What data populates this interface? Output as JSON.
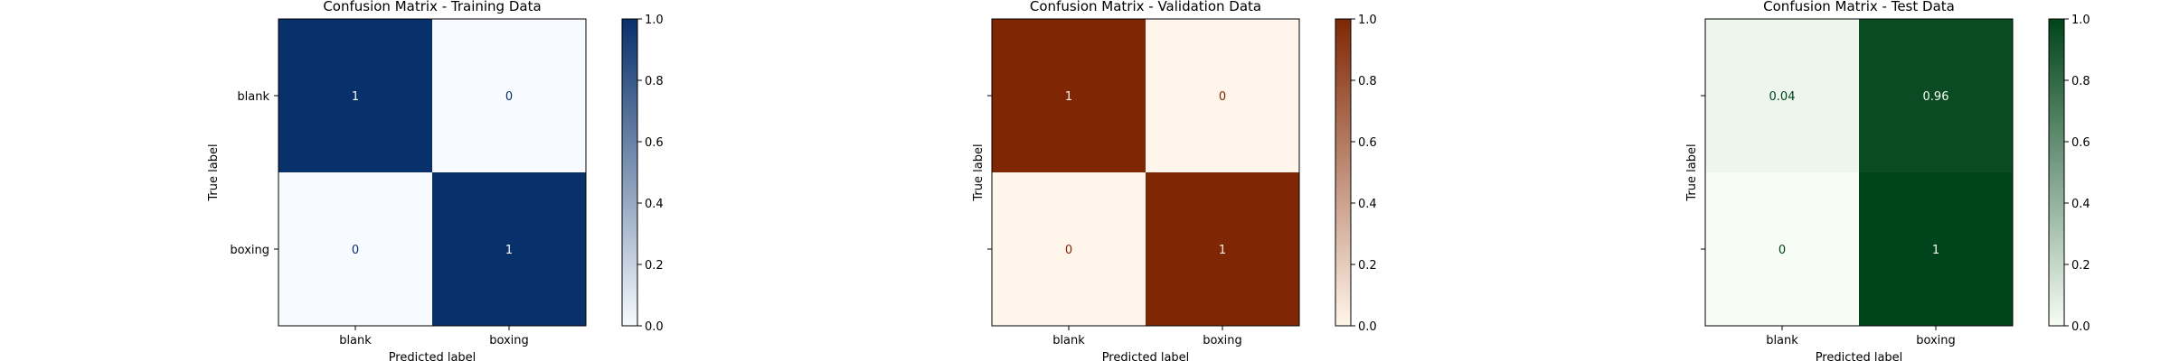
{
  "chart_data": [
    {
      "type": "heatmap",
      "title": "Confusion Matrix - Training Data",
      "xlabel": "Predicted label",
      "ylabel": "True label",
      "x_categories": [
        "blank",
        "boxing"
      ],
      "y_categories": [
        "blank",
        "boxing"
      ],
      "values": [
        [
          1,
          0
        ],
        [
          0,
          1
        ]
      ],
      "value_labels": [
        [
          "1",
          "0"
        ],
        [
          "0",
          "1"
        ]
      ],
      "colormap": "Blues",
      "colormap_low": "#f7fbff",
      "colormap_high": "#08306b",
      "colorbar_ticks": [
        "0.0",
        "0.2",
        "0.4",
        "0.6",
        "0.8",
        "1.0"
      ],
      "colorbar_range": [
        0,
        1
      ]
    },
    {
      "type": "heatmap",
      "title": "Confusion Matrix - Validation Data",
      "xlabel": "Predicted label",
      "ylabel": "True label",
      "x_categories": [
        "blank",
        "boxing"
      ],
      "y_categories": [
        "",
        ""
      ],
      "values": [
        [
          1,
          0
        ],
        [
          0,
          1
        ]
      ],
      "value_labels": [
        [
          "1",
          "0"
        ],
        [
          "0",
          "1"
        ]
      ],
      "colormap": "Oranges",
      "colormap_low": "#fff5eb",
      "colormap_high": "#7f2704",
      "colorbar_ticks": [
        "0.0",
        "0.2",
        "0.4",
        "0.6",
        "0.8",
        "1.0"
      ],
      "colorbar_range": [
        0,
        1
      ]
    },
    {
      "type": "heatmap",
      "title": "Confusion Matrix - Test Data",
      "xlabel": "Predicted label",
      "ylabel": "True label",
      "x_categories": [
        "blank",
        "boxing"
      ],
      "y_categories": [
        "",
        ""
      ],
      "values": [
        [
          0.04,
          0.96
        ],
        [
          0,
          1
        ]
      ],
      "value_labels": [
        [
          "0.04",
          "0.96"
        ],
        [
          "0",
          "1"
        ]
      ],
      "colormap": "Greens",
      "colormap_low": "#f7fcf5",
      "colormap_high": "#00441b",
      "colorbar_ticks": [
        "0.0",
        "0.2",
        "0.4",
        "0.6",
        "0.8",
        "1.0"
      ],
      "colorbar_range": [
        0,
        1
      ]
    }
  ]
}
